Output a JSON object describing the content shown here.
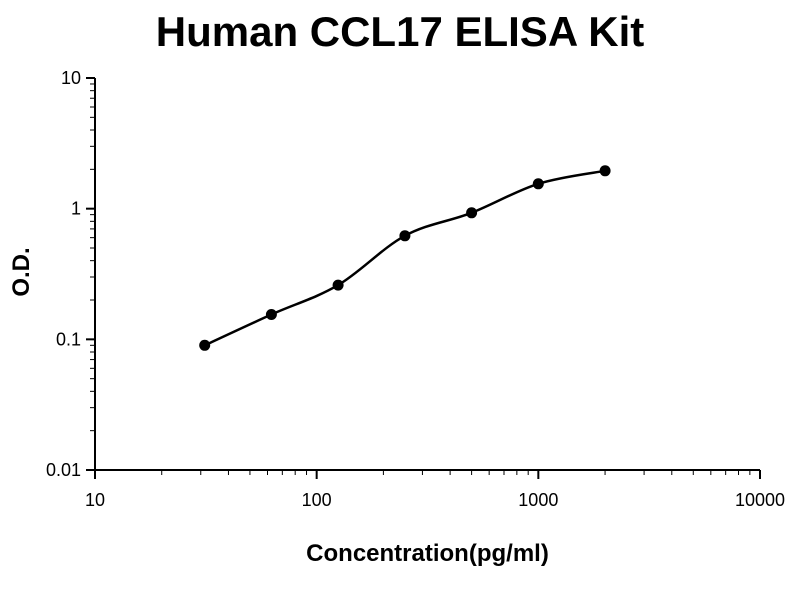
{
  "title": "Human CCL17 ELISA Kit",
  "chart_data": {
    "type": "line",
    "title": "Human CCL17 ELISA Kit",
    "xlabel": "Concentration(pg/ml)",
    "ylabel": "O.D.",
    "x_scale": "log",
    "y_scale": "log",
    "xlim": [
      10,
      10000
    ],
    "ylim": [
      0.01,
      10
    ],
    "x_ticks": [
      10,
      100,
      1000,
      10000
    ],
    "x_tick_labels": [
      "10",
      "100",
      "1000",
      "10000"
    ],
    "y_ticks": [
      10,
      1,
      0.1,
      0.01
    ],
    "y_tick_labels": [
      "10",
      "1",
      "0.1",
      "0.01"
    ],
    "points": [
      {
        "x": 31.25,
        "y": 0.09
      },
      {
        "x": 62.5,
        "y": 0.155
      },
      {
        "x": 125,
        "y": 0.26
      },
      {
        "x": 250,
        "y": 0.62
      },
      {
        "x": 500,
        "y": 0.93
      },
      {
        "x": 1000,
        "y": 1.55
      },
      {
        "x": 2000,
        "y": 1.95
      }
    ],
    "grid": false,
    "legend": false,
    "line_color": "#000000",
    "marker_color": "#000000",
    "axis_color": "#000000",
    "background_color": "#ffffff"
  }
}
